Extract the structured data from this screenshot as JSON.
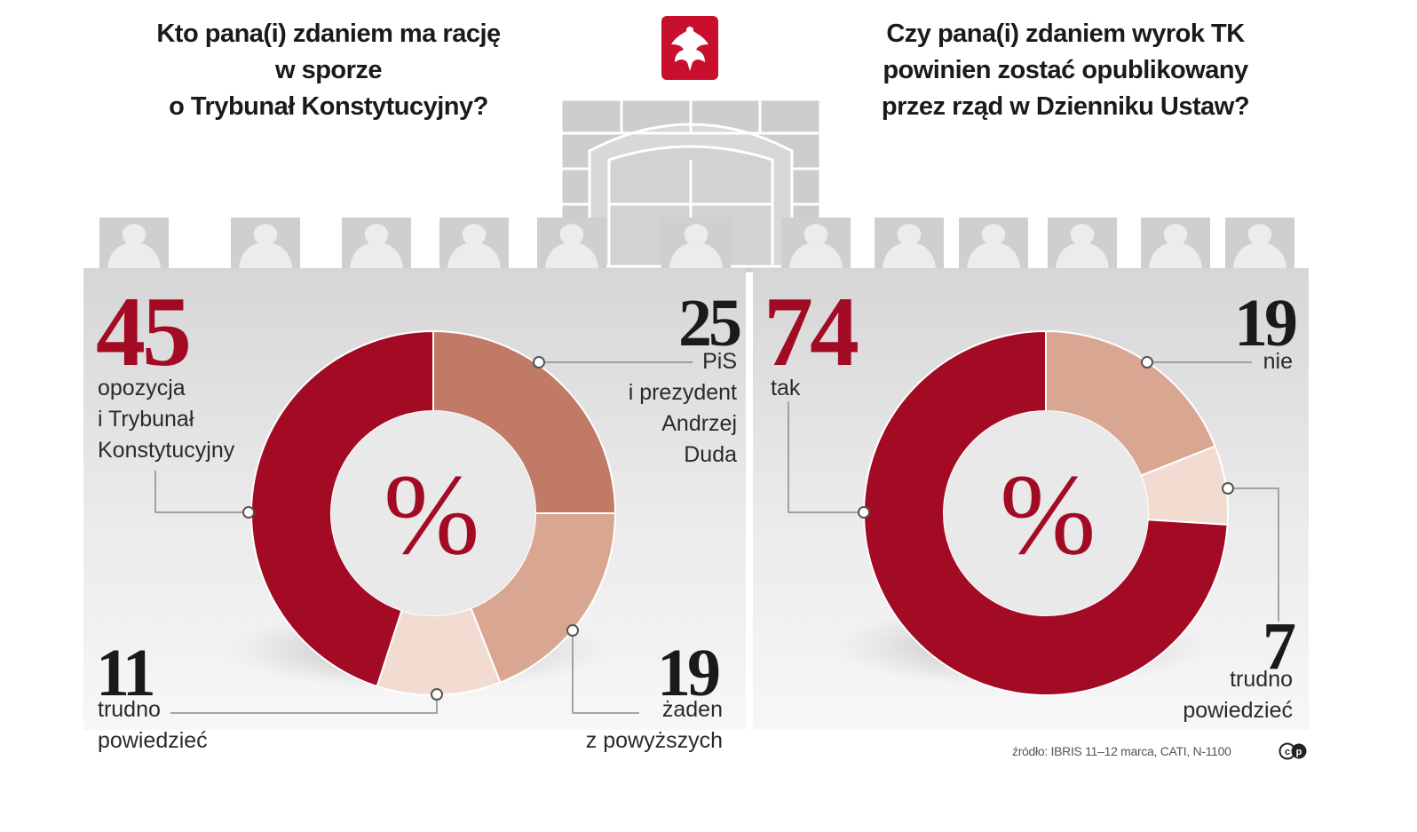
{
  "left": {
    "title_lines": [
      "Kto pana(i) zdaniem ma rację",
      "w sporze",
      "o Trybunał Konstytucyjny?"
    ],
    "center_symbol": "%",
    "items": [
      {
        "value": "45",
        "label_lines": [
          "opozycja",
          "i Trybunał",
          "Konstytucyjny"
        ]
      },
      {
        "value": "25",
        "label_lines": [
          "PiS",
          "i prezydent",
          "Andrzej",
          "Duda"
        ]
      },
      {
        "value": "19",
        "label_lines": [
          "żaden",
          "z powyższych"
        ]
      },
      {
        "value": "11",
        "label_lines": [
          "trudno",
          "powiedzieć"
        ]
      }
    ]
  },
  "right": {
    "title_lines": [
      "Czy pana(i) zdaniem wyrok TK",
      "powinien zostać opublikowany",
      "przez rząd w Dzienniku Ustaw?"
    ],
    "center_symbol": "%",
    "items": [
      {
        "value": "74",
        "label_lines": [
          "tak"
        ]
      },
      {
        "value": "19",
        "label_lines": [
          "nie"
        ]
      },
      {
        "value": "7",
        "label_lines": [
          "trudno",
          "powiedzieć"
        ]
      }
    ]
  },
  "source": "źródło: IBRIS 11–12 marca, CATI, N-1100",
  "logo_text": "cp",
  "colors": {
    "red": "#a30b25",
    "salmon_dark": "#c07a66",
    "salmon_mid": "#d9a692",
    "salmon_light": "#f2dcd2",
    "panel_gray": "#dcdcdc",
    "building_gray": "#cfcfcf"
  },
  "chart_data": [
    {
      "type": "pie",
      "title": "Kto pana(i) zdaniem ma rację w sporze o Trybunał Konstytucyjny?",
      "unit": "%",
      "categories": [
        "opozycja i Trybunał Konstytucyjny",
        "PiS i prezydent Andrzej Duda",
        "żaden z powyższych",
        "trudno powiedzieć"
      ],
      "values": [
        45,
        25,
        19,
        11
      ],
      "colors": [
        "#a30b25",
        "#c07a66",
        "#d9a692",
        "#f2dcd2"
      ]
    },
    {
      "type": "pie",
      "title": "Czy pana(i) zdaniem wyrok TK powinien zostać opublikowany przez rząd w Dzienniku Ustaw?",
      "unit": "%",
      "categories": [
        "tak",
        "nie",
        "trudno powiedzieć"
      ],
      "values": [
        74,
        19,
        7
      ],
      "colors": [
        "#a30b25",
        "#d9a692",
        "#f2dcd2"
      ]
    }
  ]
}
